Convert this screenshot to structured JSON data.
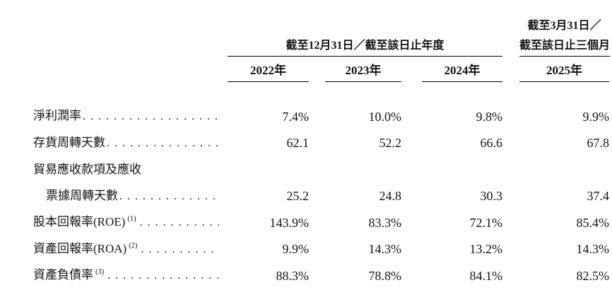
{
  "colors": {
    "background": "#ffffff",
    "text": "#141414",
    "rule": "#000000"
  },
  "dot_leader": "............................................................",
  "header": {
    "group_annual": {
      "title": "截至12月31日／截至該日止年度"
    },
    "group_quarter": {
      "line1": "截至3月31日／",
      "line2": "截至該日止三個月"
    },
    "years": [
      "2022年",
      "2023年",
      "2024年",
      "2025年"
    ]
  },
  "rows": [
    {
      "label": "淨利潤率",
      "values": [
        "7.4%",
        "10.0%",
        "9.8%",
        "9.9%"
      ]
    },
    {
      "label": "存貨周轉天數",
      "values": [
        "62.1",
        "52.2",
        "66.6",
        "67.8"
      ]
    },
    {
      "label": "貿易應收款項及應收",
      "values": [
        "",
        "",
        "",
        ""
      ]
    },
    {
      "label": "票據周轉天數",
      "values": [
        "25.2",
        "24.8",
        "30.3",
        "37.4"
      ]
    },
    {
      "label": "股本回報率(ROE)",
      "sup": "(1)",
      "values": [
        "143.9%",
        "83.3%",
        "72.1%",
        "85.4%"
      ]
    },
    {
      "label": "資產回報率(ROA)",
      "sup": "(2)",
      "values": [
        "9.9%",
        "14.3%",
        "13.2%",
        "14.3%"
      ]
    },
    {
      "label": "資產負債率",
      "sup": "(3)",
      "values": [
        "88.3%",
        "78.8%",
        "84.1%",
        "82.5%"
      ]
    }
  ]
}
